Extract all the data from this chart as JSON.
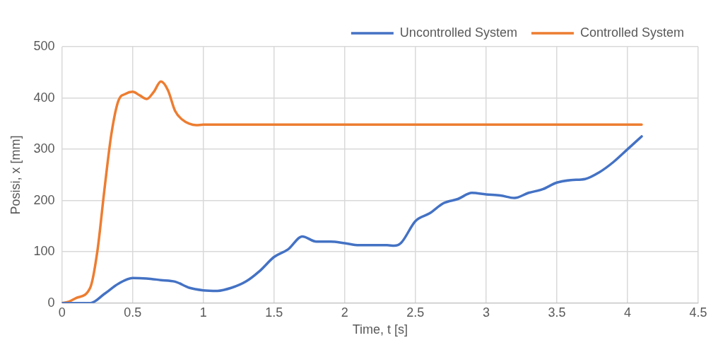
{
  "chart_data": {
    "type": "line",
    "xlabel": "Time, t [s]",
    "ylabel": "Posisi, x [mm]",
    "xlim": [
      0,
      4.5
    ],
    "xticks": [
      0,
      0.5,
      1,
      1.5,
      2,
      2.5,
      3,
      3.5,
      4,
      4.5
    ],
    "ylim": [
      0,
      500
    ],
    "yticks": [
      0,
      100,
      200,
      300,
      400,
      500
    ],
    "grid": true,
    "legend": "top right",
    "marker": "none",
    "line_style": "solid",
    "series": [
      {
        "name": "Uncontrolled System",
        "color": "#4472c4",
        "x": [
          0,
          0.1,
          0.2,
          0.3,
          0.4,
          0.5,
          0.6,
          0.7,
          0.8,
          0.9,
          1.0,
          1.1,
          1.2,
          1.3,
          1.4,
          1.5,
          1.6,
          1.7,
          1.8,
          1.9,
          2.0,
          2.1,
          2.2,
          2.3,
          2.35,
          2.4,
          2.5,
          2.6,
          2.7,
          2.8,
          2.9,
          3.0,
          3.1,
          3.2,
          3.3,
          3.4,
          3.5,
          3.6,
          3.7,
          3.8,
          3.9,
          4.0,
          4.1
        ],
        "values": [
          0,
          0,
          0,
          18,
          38,
          49,
          48,
          45,
          42,
          30,
          25,
          24,
          30,
          42,
          63,
          90,
          105,
          130,
          120,
          120,
          117,
          113,
          113,
          113,
          112,
          118,
          160,
          175,
          195,
          203,
          215,
          212,
          210,
          205,
          215,
          222,
          235,
          240,
          242,
          255,
          275,
          300,
          325
        ]
      },
      {
        "name": "Controlled System",
        "color": "#ed7d31",
        "x": [
          0,
          0.05,
          0.1,
          0.2,
          0.25,
          0.3,
          0.35,
          0.4,
          0.45,
          0.5,
          0.55,
          0.6,
          0.65,
          0.7,
          0.75,
          0.8,
          0.85,
          0.9,
          0.95,
          1.0,
          1.5,
          2.0,
          2.5,
          3.0,
          3.5,
          4.0,
          4.1
        ],
        "values": [
          0,
          3,
          10,
          30,
          100,
          220,
          330,
          395,
          408,
          412,
          405,
          398,
          412,
          432,
          415,
          375,
          358,
          350,
          347,
          348,
          348,
          348,
          348,
          348,
          348,
          348,
          348
        ]
      }
    ]
  }
}
